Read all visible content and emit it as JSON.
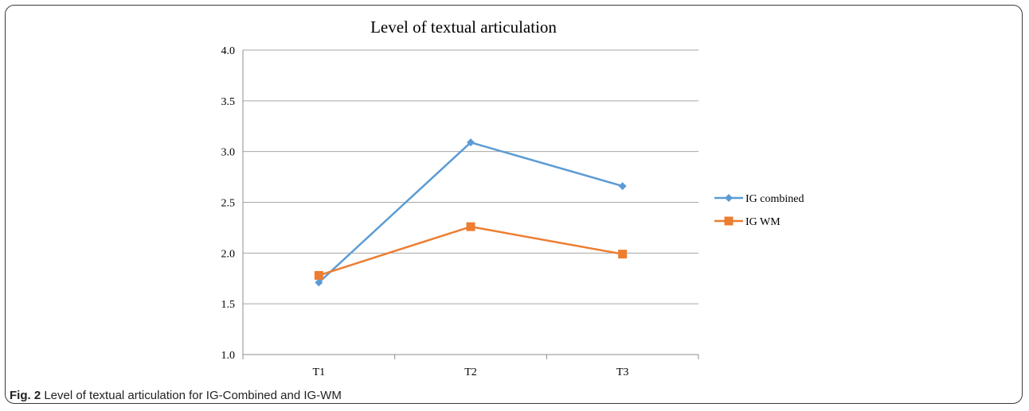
{
  "chart_data": {
    "type": "line",
    "title": "Level of textual articulation",
    "xlabel": "",
    "ylabel": "",
    "categories": [
      "T1",
      "T2",
      "T3"
    ],
    "y_ticks": [
      "1.0",
      "1.5",
      "2.0",
      "2.5",
      "3.0",
      "3.5",
      "4.0"
    ],
    "ylim": [
      1.0,
      4.0
    ],
    "grid": true,
    "legend_position": "right",
    "series": [
      {
        "name": "IG combined",
        "values": [
          1.71,
          3.09,
          2.66
        ],
        "color": "#5b9bd5",
        "marker": "diamond"
      },
      {
        "name": "IG WM",
        "values": [
          1.78,
          2.26,
          1.99
        ],
        "color": "#ed7d31",
        "marker": "square"
      }
    ]
  },
  "caption": {
    "label": "Fig. 2",
    "text": "Level of textual articulation for IG-Combined and IG-WM"
  }
}
